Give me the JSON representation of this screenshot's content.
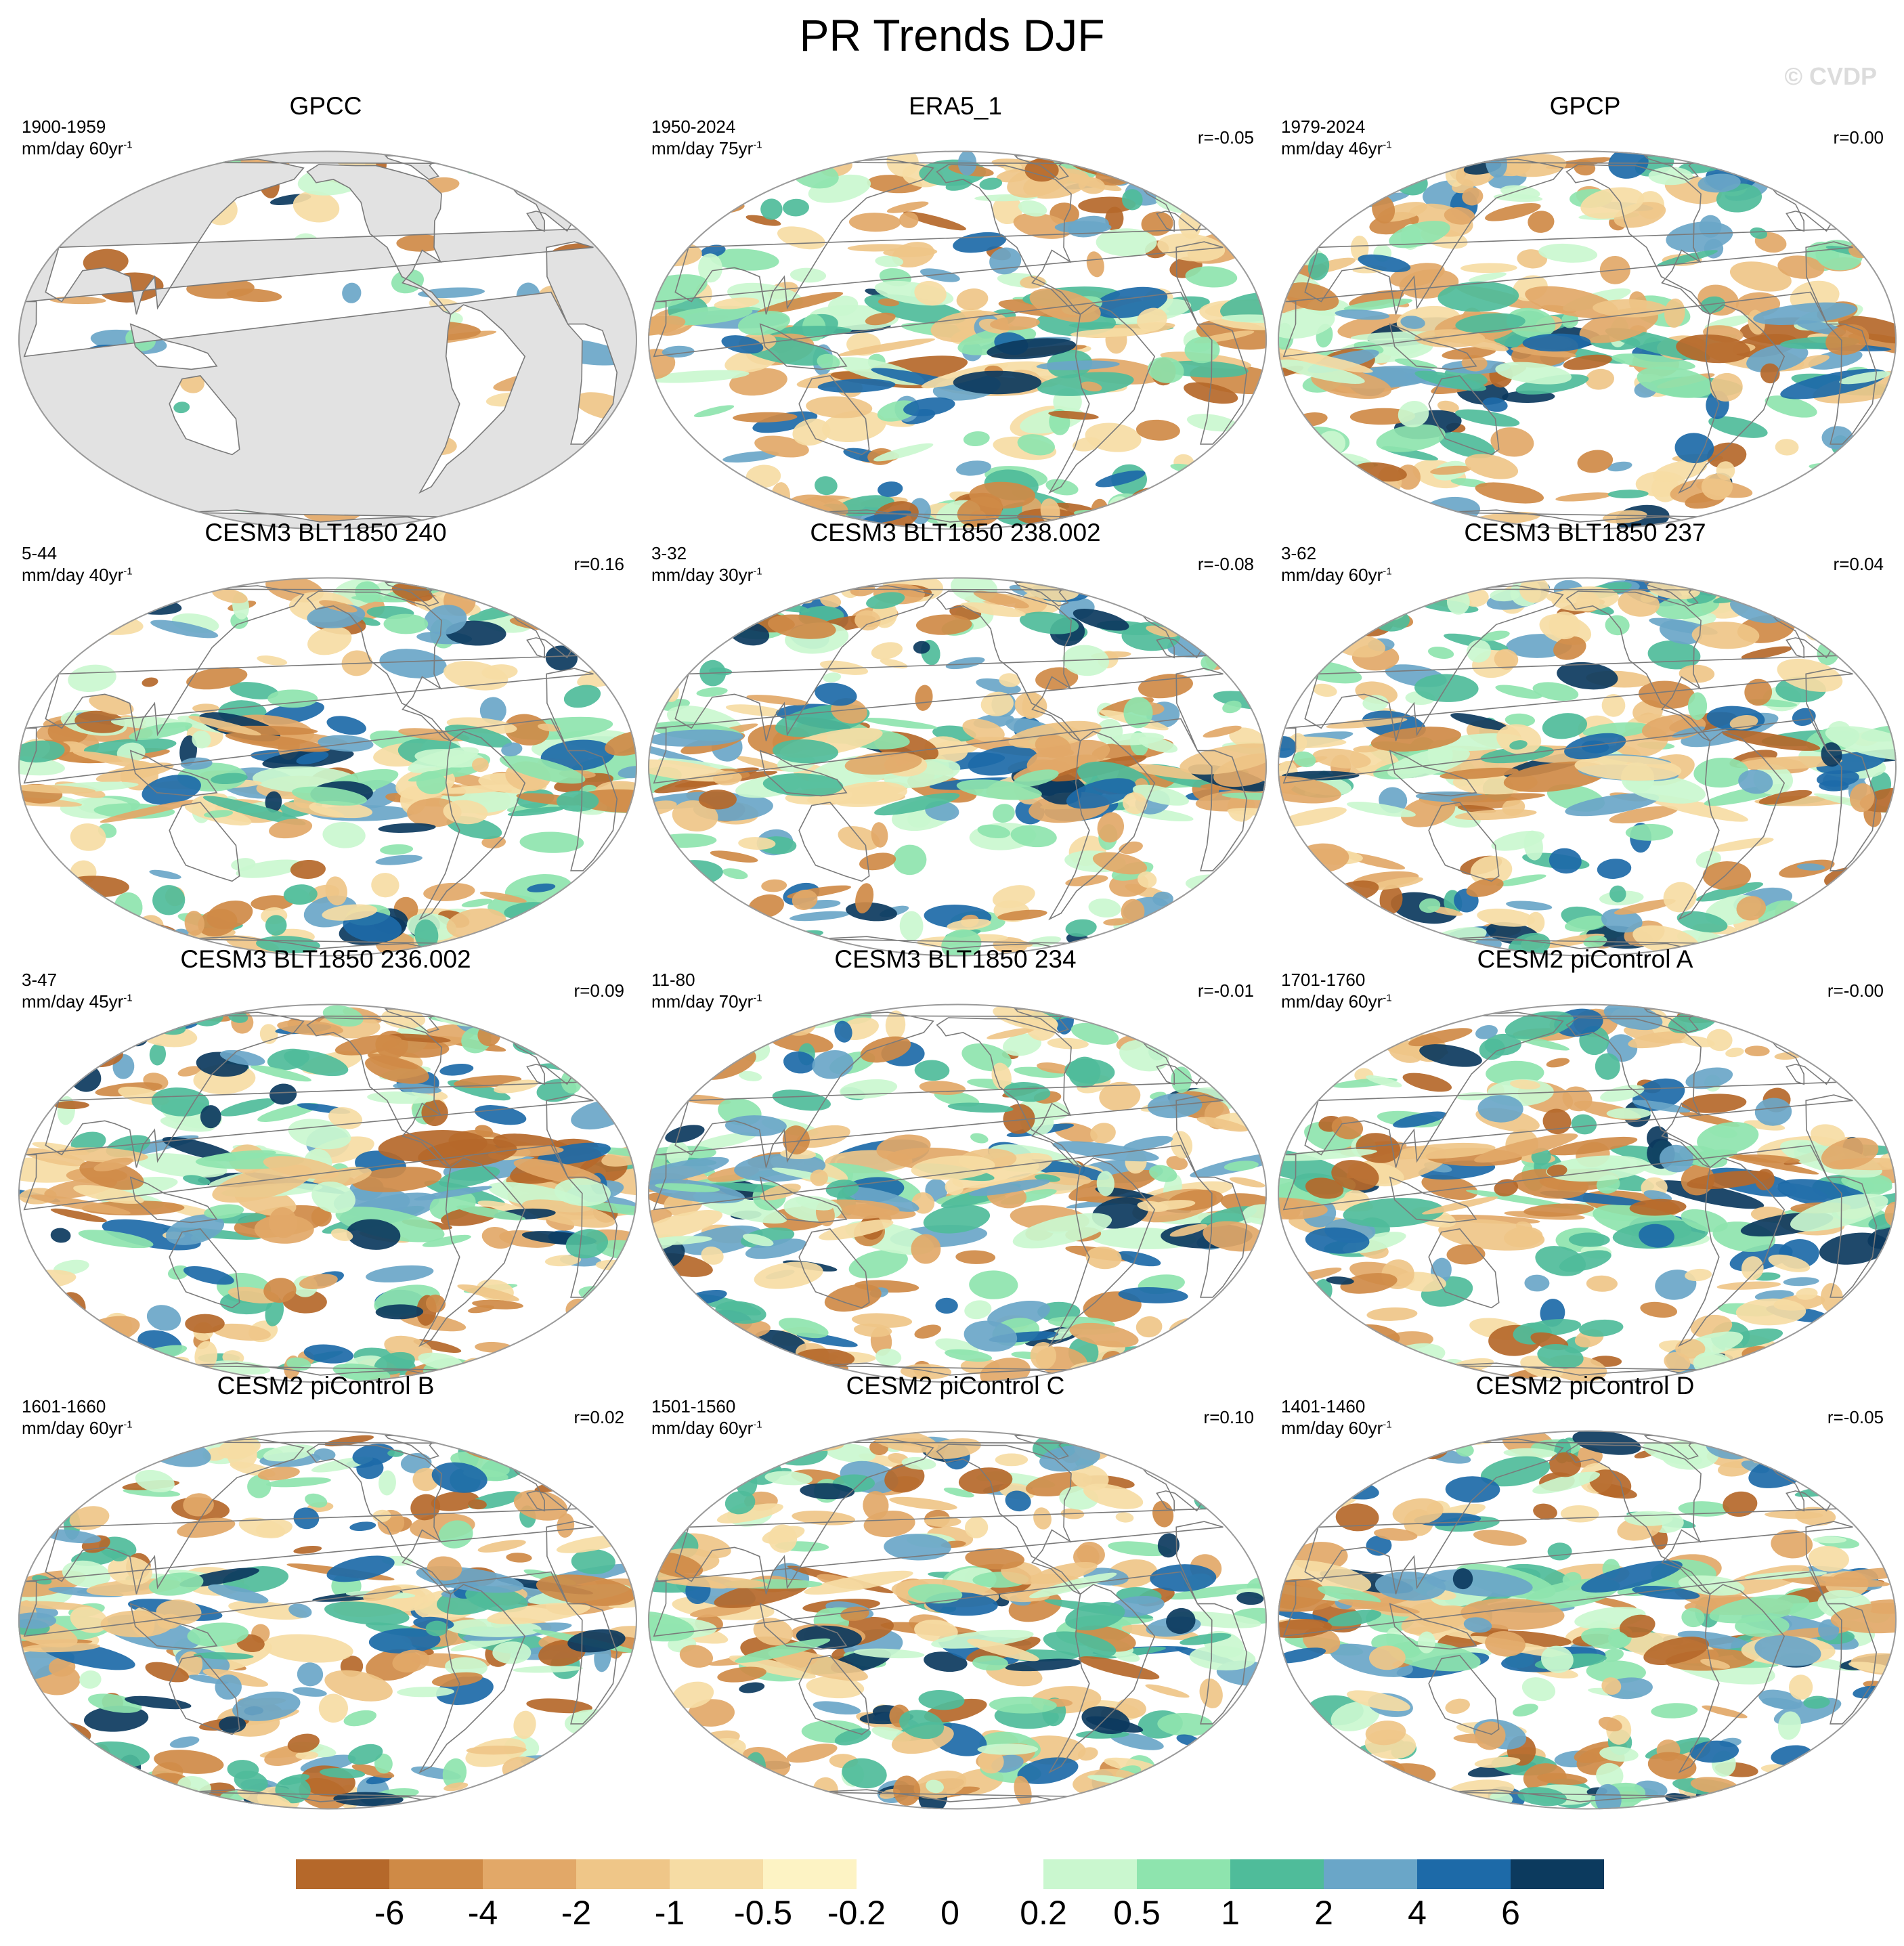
{
  "figure": {
    "title": "PR Trends DJF",
    "watermark": "© CVDP"
  },
  "panels": [
    {
      "title": "GPCC",
      "period": "1900-1959",
      "units": "mm/day 60yr",
      "units_exp": "-1",
      "corr": "",
      "land_only": true,
      "seed": 11
    },
    {
      "title": "ERA5_1",
      "period": "1950-2024",
      "units": "mm/day 75yr",
      "units_exp": "-1",
      "corr": "r=-0.05",
      "land_only": false,
      "seed": 23
    },
    {
      "title": "GPCP",
      "period": "1979-2024",
      "units": "mm/day 46yr",
      "units_exp": "-1",
      "corr": "r=0.00",
      "land_only": false,
      "seed": 37
    },
    {
      "title": "CESM3 BLT1850 240",
      "period": "5-44",
      "units": "mm/day 40yr",
      "units_exp": "-1",
      "corr": "r=0.16",
      "land_only": false,
      "seed": 41
    },
    {
      "title": "CESM3 BLT1850 238.002",
      "period": "3-32",
      "units": "mm/day 30yr",
      "units_exp": "-1",
      "corr": "r=-0.08",
      "land_only": false,
      "seed": 53
    },
    {
      "title": "CESM3 BLT1850 237",
      "period": "3-62",
      "units": "mm/day 60yr",
      "units_exp": "-1",
      "corr": "r=0.04",
      "land_only": false,
      "seed": 67
    },
    {
      "title": "CESM3 BLT1850 236.002",
      "period": "3-47",
      "units": "mm/day 45yr",
      "units_exp": "-1",
      "corr": "r=0.09",
      "land_only": false,
      "seed": 71
    },
    {
      "title": "CESM3 BLT1850 234",
      "period": "11-80",
      "units": "mm/day 70yr",
      "units_exp": "-1",
      "corr": "r=-0.01",
      "land_only": false,
      "seed": 83
    },
    {
      "title": "CESM2 piControl A",
      "period": "1701-1760",
      "units": "mm/day 60yr",
      "units_exp": "-1",
      "corr": "r=-0.00",
      "land_only": false,
      "seed": 97
    },
    {
      "title": "CESM2 piControl B",
      "period": "1601-1660",
      "units": "mm/day 60yr",
      "units_exp": "-1",
      "corr": "r=0.02",
      "land_only": false,
      "seed": 101
    },
    {
      "title": "CESM2 piControl C",
      "period": "1501-1560",
      "units": "mm/day 60yr",
      "units_exp": "-1",
      "corr": "r=0.10",
      "land_only": false,
      "seed": 113
    },
    {
      "title": "CESM2 piControl D",
      "period": "1401-1460",
      "units": "mm/day 60yr",
      "units_exp": "-1",
      "corr": "r=-0.05",
      "land_only": false,
      "seed": 127
    }
  ],
  "colorbar": {
    "labels": [
      "-6",
      "-4",
      "-2",
      "-1",
      "-0.5",
      "-0.2",
      "0",
      "0.2",
      "0.5",
      "1",
      "2",
      "4",
      "6"
    ],
    "colors": [
      "#b5682a",
      "#cf8a46",
      "#e2a868",
      "#efc688",
      "#f6dca4",
      "#fdf3c4",
      "#ffffff",
      "#ffffff",
      "#caf7cf",
      "#8ee4ae",
      "#4fbc9a",
      "#6aa6c8",
      "#1d6aa8",
      "#0c3a5e"
    ]
  },
  "colors": {
    "land_mask": "#e2e2e2",
    "coastline": "#7a7a7a",
    "map_border": "#9a9a9a"
  }
}
